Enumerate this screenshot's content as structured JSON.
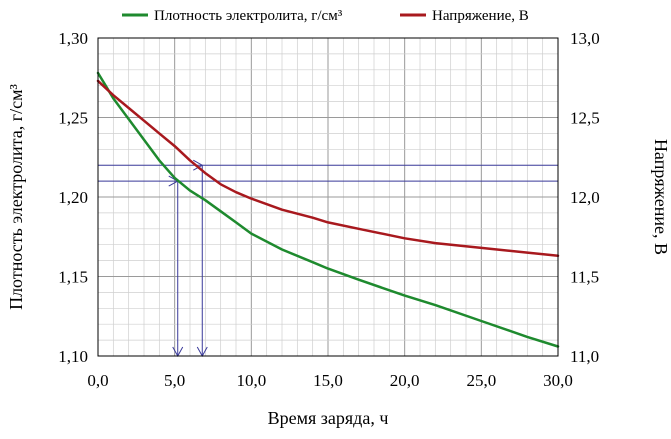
{
  "chart_data": {
    "type": "line",
    "title": "",
    "xlabel": "Время заряда, ч",
    "ylabel": "Плотность электролита, г/см³",
    "y2label": "Напряжение, В",
    "xlim": [
      0,
      30
    ],
    "ylim": [
      1.1,
      1.3
    ],
    "y2lim": [
      11.0,
      13.0
    ],
    "x_ticks": [
      "0,0",
      "5,0",
      "10,0",
      "15,0",
      "20,0",
      "25,0",
      "30,0"
    ],
    "y_ticks": [
      "1,10",
      "1,15",
      "1,20",
      "1,25",
      "1,30"
    ],
    "y2_ticks": [
      "11,0",
      "11,5",
      "12,0",
      "12,5",
      "13,0"
    ],
    "grid": true,
    "minor_grid": true,
    "legend_position": "top",
    "series": [
      {
        "name": "Плотность электролита, г/см³",
        "axis": "left",
        "color": "#1e8a2e",
        "x": [
          0,
          0.5,
          1,
          2,
          3,
          4,
          5,
          6,
          7,
          8,
          9,
          10,
          12,
          14,
          15,
          17,
          20,
          22,
          25,
          28,
          30
        ],
        "y": [
          1.278,
          1.27,
          1.262,
          1.249,
          1.236,
          1.223,
          1.212,
          1.204,
          1.198,
          1.191,
          1.184,
          1.177,
          1.167,
          1.159,
          1.155,
          1.148,
          1.138,
          1.132,
          1.122,
          1.112,
          1.106
        ]
      },
      {
        "name": "Напряжение, В",
        "axis": "right",
        "color": "#a8191e",
        "x": [
          0,
          1,
          2,
          3,
          4,
          5,
          6,
          7,
          8,
          9,
          10,
          12,
          14,
          15,
          17,
          20,
          22,
          25,
          28,
          30
        ],
        "y": [
          12.73,
          12.64,
          12.56,
          12.48,
          12.4,
          12.32,
          12.23,
          12.15,
          12.08,
          12.03,
          11.99,
          11.92,
          11.87,
          11.84,
          11.8,
          11.74,
          11.71,
          11.68,
          11.65,
          11.63
        ]
      }
    ],
    "annotations": [
      {
        "type": "guide",
        "axis": "left",
        "y": 1.21,
        "x": 5.2,
        "color": "#3a3a9a"
      },
      {
        "type": "guide",
        "axis": "right",
        "y": 12.2,
        "x": 6.8,
        "color": "#3a3a9a"
      }
    ]
  }
}
